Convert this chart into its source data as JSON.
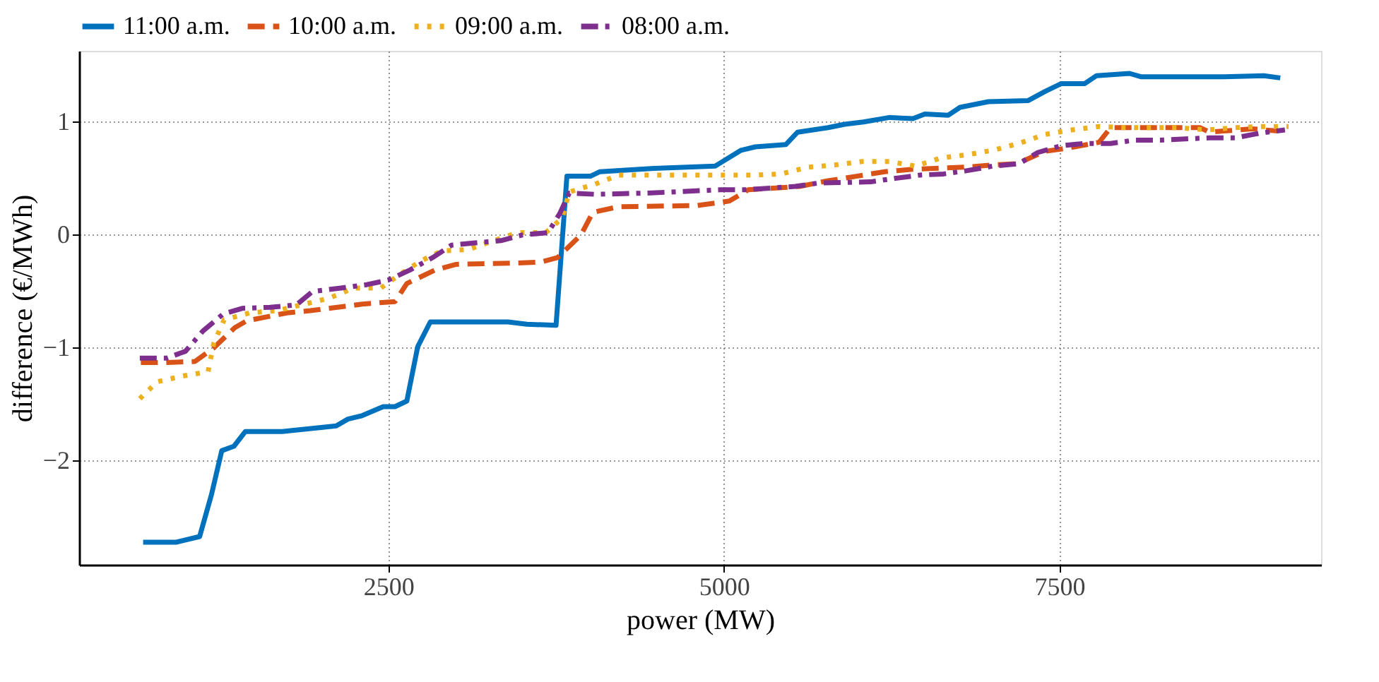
{
  "chart_data": {
    "type": "line",
    "xlabel": "power (MW)",
    "ylabel": "difference (€/MWh)",
    "xlim": [
      195,
      9450
    ],
    "ylim": [
      -2.92,
      1.63
    ],
    "xticks": [
      2500,
      5000,
      7500
    ],
    "yticks": [
      {
        "value": -2,
        "label": "−2"
      },
      {
        "value": -1,
        "label": "−1"
      },
      0,
      1
    ],
    "grid": true,
    "legend": "top left",
    "series": [
      {
        "name": "11:00 a.m.",
        "color": "#0072bd",
        "line_style": "solid",
        "x": [
          672,
          918,
          1093,
          1181,
          1258,
          1349,
          1434,
          1707,
          2111,
          2198,
          2303,
          2461,
          2549,
          2637,
          2718,
          2812,
          3391,
          3532,
          3749,
          3830,
          4005,
          4076,
          4479,
          4935,
          5128,
          5234,
          5461,
          5549,
          5777,
          5900,
          6040,
          6234,
          6409,
          6497,
          6672,
          6760,
          6971,
          7268,
          7392,
          7514,
          7689,
          7777,
          8023,
          8111,
          8725,
          9023,
          9146
        ],
        "values": [
          -2.72,
          -2.72,
          -2.67,
          -2.3,
          -1.91,
          -1.87,
          -1.74,
          -1.74,
          -1.69,
          -1.63,
          -1.6,
          -1.52,
          -1.52,
          -1.47,
          -0.99,
          -0.77,
          -0.77,
          -0.79,
          -0.8,
          0.52,
          0.52,
          0.56,
          0.59,
          0.61,
          0.75,
          0.78,
          0.8,
          0.91,
          0.95,
          0.98,
          1.0,
          1.04,
          1.03,
          1.07,
          1.06,
          1.13,
          1.18,
          1.19,
          1.27,
          1.34,
          1.34,
          1.41,
          1.43,
          1.4,
          1.4,
          1.41,
          1.39
        ]
      },
      {
        "name": "10:00 a.m.",
        "color": "#d95319",
        "line_style": "dashed",
        "x": [
          655,
          830,
          1058,
          1198,
          1356,
          1444,
          1742,
          1918,
          2321,
          2549,
          2637,
          2847,
          3005,
          3408,
          3637,
          3760,
          3935,
          4023,
          4216,
          4795,
          5040,
          5181,
          5566,
          5777,
          5988,
          6198,
          6392,
          6795,
          7005,
          7181,
          7392,
          7567,
          7795,
          7882,
          8339,
          8549,
          8619,
          8725,
          8935,
          9128
        ],
        "values": [
          -1.13,
          -1.13,
          -1.12,
          -1.0,
          -0.82,
          -0.76,
          -0.69,
          -0.67,
          -0.61,
          -0.59,
          -0.43,
          -0.31,
          -0.26,
          -0.25,
          -0.24,
          -0.2,
          0.0,
          0.2,
          0.25,
          0.26,
          0.3,
          0.4,
          0.43,
          0.48,
          0.52,
          0.56,
          0.58,
          0.6,
          0.62,
          0.63,
          0.74,
          0.77,
          0.82,
          0.95,
          0.95,
          0.95,
          0.91,
          0.92,
          0.94,
          0.92
        ]
      },
      {
        "name": "09:00 a.m.",
        "color": "#edb120",
        "line_style": "dotted",
        "x": [
          647,
          777,
          963,
          1156,
          1198,
          1276,
          1468,
          1672,
          2058,
          2240,
          2444,
          2584,
          2742,
          2900,
          3093,
          3286,
          3461,
          3672,
          3795,
          3847,
          4040,
          4216,
          4830,
          5234,
          5426,
          5626,
          5829,
          6029,
          6234,
          6426,
          6613,
          6813,
          7005,
          7198,
          7392,
          7592,
          7795,
          7987,
          8391,
          8602,
          8802,
          9005,
          9208
        ],
        "values": [
          -1.45,
          -1.3,
          -1.25,
          -1.21,
          -0.96,
          -0.75,
          -0.69,
          -0.67,
          -0.56,
          -0.47,
          -0.47,
          -0.35,
          -0.23,
          -0.14,
          -0.13,
          -0.05,
          0.02,
          0.02,
          0.15,
          0.38,
          0.45,
          0.53,
          0.53,
          0.53,
          0.54,
          0.6,
          0.62,
          0.65,
          0.65,
          0.61,
          0.68,
          0.71,
          0.75,
          0.81,
          0.89,
          0.93,
          0.96,
          0.95,
          0.95,
          0.93,
          0.95,
          0.96,
          0.96
        ]
      },
      {
        "name": "08:00 a.m.",
        "color": "#7e2f8e",
        "line_style": "dashdot",
        "x": [
          647,
          847,
          987,
          1118,
          1268,
          1409,
          1619,
          1813,
          1935,
          2146,
          2339,
          2497,
          2661,
          2830,
          2970,
          3146,
          3339,
          3497,
          3689,
          3777,
          3847,
          4040,
          4408,
          4602,
          4970,
          5163,
          5532,
          5707,
          6093,
          6268,
          6461,
          6637,
          6813,
          7005,
          7198,
          7339,
          7514,
          7689,
          7882,
          8065,
          8251,
          8437,
          8619,
          8813,
          8988,
          9181
        ],
        "values": [
          -1.09,
          -1.09,
          -1.03,
          -0.85,
          -0.7,
          -0.65,
          -0.64,
          -0.62,
          -0.5,
          -0.47,
          -0.44,
          -0.4,
          -0.31,
          -0.2,
          -0.09,
          -0.07,
          -0.05,
          0.0,
          0.02,
          0.19,
          0.37,
          0.36,
          0.37,
          0.38,
          0.4,
          0.4,
          0.43,
          0.46,
          0.47,
          0.5,
          0.53,
          0.54,
          0.57,
          0.61,
          0.63,
          0.73,
          0.79,
          0.81,
          0.81,
          0.84,
          0.84,
          0.85,
          0.86,
          0.86,
          0.9,
          0.93
        ]
      }
    ]
  }
}
